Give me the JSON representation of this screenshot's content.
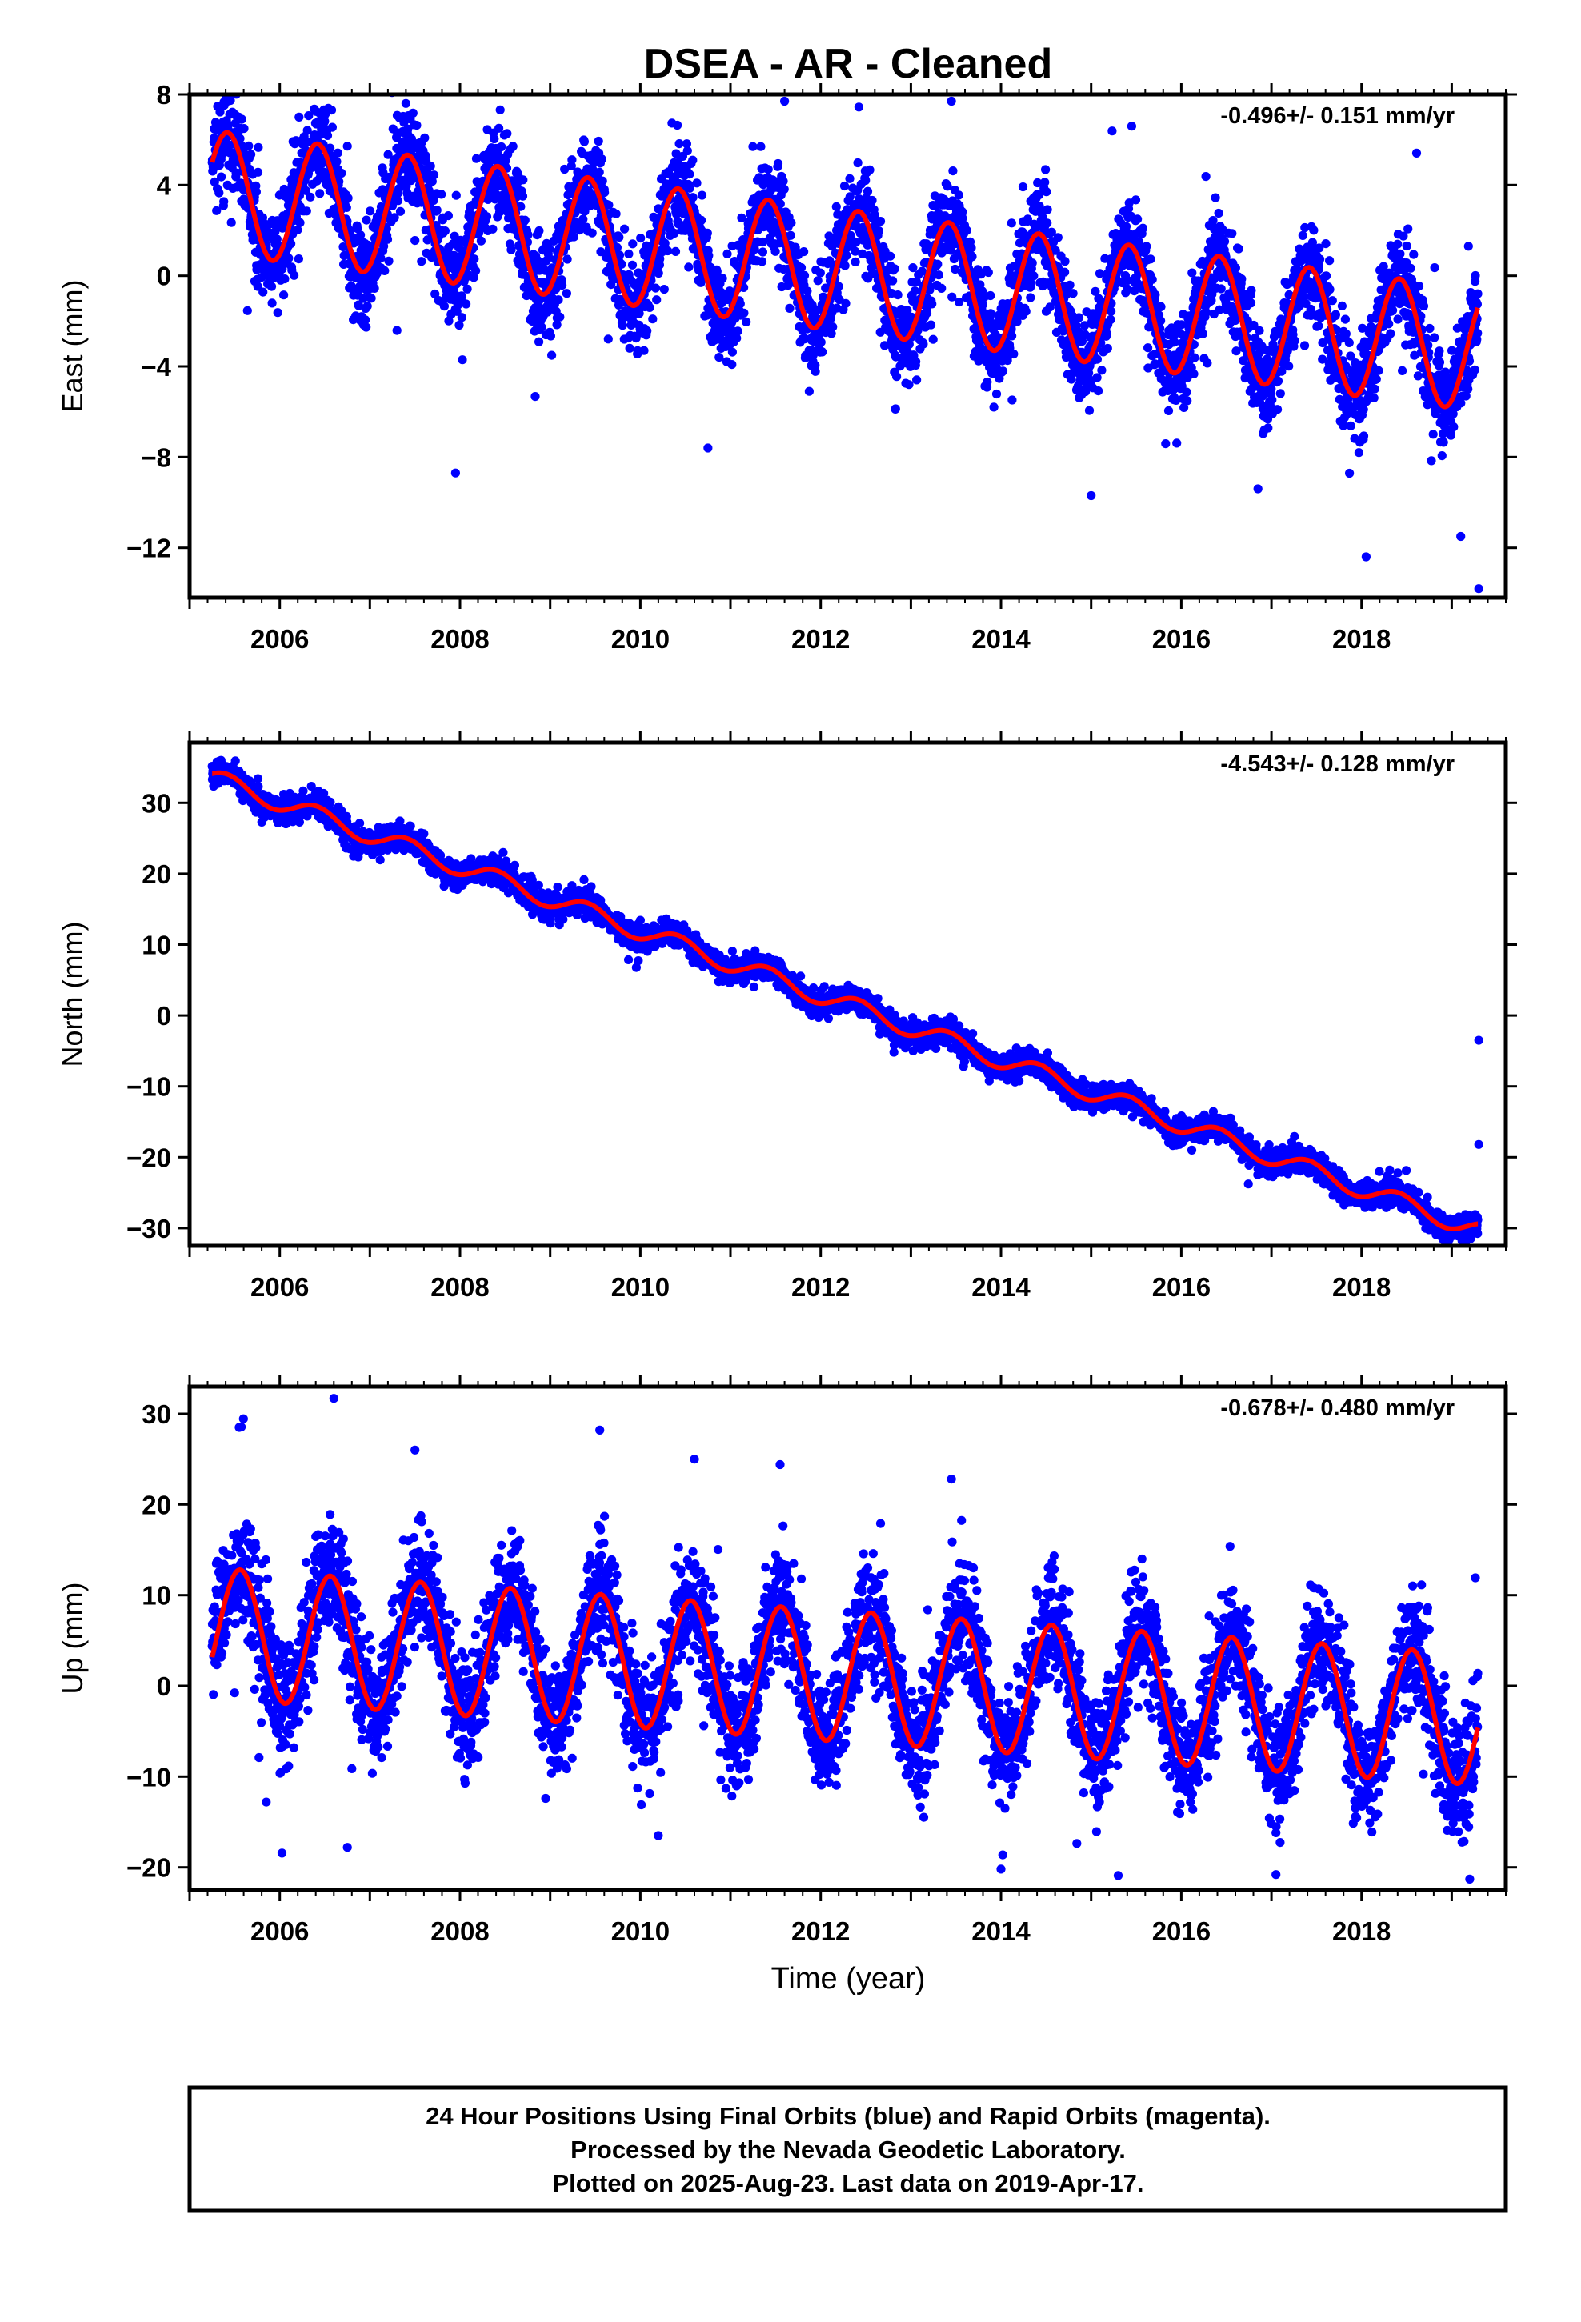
{
  "figure": {
    "title": "DSEA  - AR - Cleaned",
    "x_axis_label": "Time (year)"
  },
  "colors": {
    "observations": "#0000ff",
    "model_fit": "#ff0000",
    "frame": "#000000"
  },
  "footer": {
    "line1": "24 Hour Positions Using Final Orbits (blue) and Rapid Orbits (magenta).",
    "line2": "Processed by the Nevada Geodetic Laboratory.",
    "line3": "Plotted on 2025-Aug-23. Last data on 2019-Apr-17."
  },
  "chart_data": [
    {
      "type": "scatter",
      "component": "east",
      "ylabel": "East (mm)",
      "rate_label": "-0.496+/- 0.151 mm/yr",
      "xlim": [
        2005.0,
        2019.6
      ],
      "ylim": [
        -14.2,
        8.0
      ],
      "x_ticks": [
        2006,
        2008,
        2010,
        2012,
        2014,
        2016,
        2018
      ],
      "y_ticks": [
        8,
        4,
        0,
        -4,
        -8,
        -12
      ],
      "y_tick_labels": [
        "8",
        "4",
        "0",
        "−4",
        "−8",
        "−12"
      ],
      "data_start": 2005.25,
      "data_end": 2019.29,
      "model": {
        "offset_mm": 3.7,
        "trend_mm_per_yr": -0.496,
        "annual_amplitude_mm": 2.7,
        "annual_peak_year_fraction": 0.42
      },
      "scatter_noise_mm": 1.1,
      "outliers": [
        {
          "x": 2007.4,
          "y": 7.6
        },
        {
          "x": 2007.95,
          "y": -8.7
        },
        {
          "x": 2010.75,
          "y": -7.6
        },
        {
          "x": 2015.0,
          "y": -9.7
        },
        {
          "x": 2016.85,
          "y": -9.4
        },
        {
          "x": 2018.05,
          "y": -12.4
        },
        {
          "x": 2019.1,
          "y": -11.5
        },
        {
          "x": 2019.3,
          "y": -13.8
        },
        {
          "x": 2011.6,
          "y": 7.7
        },
        {
          "x": 2013.45,
          "y": 7.7
        },
        {
          "x": 2015.45,
          "y": 6.6
        }
      ],
      "series": [
        {
          "name": "Final Orbits (blue)",
          "role": "observations",
          "color": "#0000ff"
        },
        {
          "role": "model_fit",
          "color": "#ff0000"
        }
      ]
    },
    {
      "type": "scatter",
      "component": "north",
      "ylabel": "North (mm)",
      "rate_label": "-4.543+/- 0.128 mm/yr",
      "xlim": [
        2005.0,
        2019.6
      ],
      "ylim": [
        -32.5,
        38.5
      ],
      "x_ticks": [
        2006,
        2008,
        2010,
        2012,
        2014,
        2016,
        2018
      ],
      "y_ticks": [
        30,
        20,
        10,
        0,
        -10,
        -20,
        -30
      ],
      "y_tick_labels": [
        "30",
        "20",
        "10",
        "0",
        "−10",
        "−20",
        "−30"
      ],
      "data_start": 2005.25,
      "data_end": 2019.29,
      "model": {
        "offset_mm": 33.5,
        "trend_mm_per_yr": -4.543,
        "annual_amplitude_mm": 1.3,
        "annual_peak_year_fraction": 0.42
      },
      "scatter_noise_mm": 0.9,
      "outliers": [
        {
          "x": 2019.3,
          "y": -3.5
        },
        {
          "x": 2019.3,
          "y": -18.2
        }
      ],
      "series": [
        {
          "name": "Final Orbits (blue)",
          "role": "observations",
          "color": "#0000ff"
        },
        {
          "role": "model_fit",
          "color": "#ff0000"
        }
      ]
    },
    {
      "type": "scatter",
      "component": "up",
      "ylabel": "Up (mm)",
      "rate_label": "-0.678+/- 0.480 mm/yr",
      "xlim": [
        2005.0,
        2019.6
      ],
      "ylim": [
        -22.5,
        33.0
      ],
      "x_ticks": [
        2006,
        2008,
        2010,
        2012,
        2014,
        2016,
        2018
      ],
      "y_ticks": [
        30,
        20,
        10,
        0,
        -10,
        -20
      ],
      "y_tick_labels": [
        "30",
        "20",
        "10",
        "0",
        "−10",
        "−20"
      ],
      "data_start": 2005.25,
      "data_end": 2019.29,
      "model": {
        "offset_mm": 5.8,
        "trend_mm_per_yr": -0.678,
        "annual_amplitude_mm": 7.2,
        "annual_peak_year_fraction": 0.56
      },
      "scatter_noise_mm": 3.2,
      "outliers": [
        {
          "x": 2005.55,
          "y": 28.5
        },
        {
          "x": 2006.6,
          "y": 31.7
        },
        {
          "x": 2007.5,
          "y": 26.0
        },
        {
          "x": 2009.55,
          "y": 28.2
        },
        {
          "x": 2010.6,
          "y": 25.0
        },
        {
          "x": 2011.55,
          "y": 24.4
        },
        {
          "x": 2013.45,
          "y": 22.8
        },
        {
          "x": 2005.85,
          "y": -12.8
        },
        {
          "x": 2006.75,
          "y": -17.8
        },
        {
          "x": 2010.2,
          "y": -16.5
        },
        {
          "x": 2014.0,
          "y": -20.2
        },
        {
          "x": 2015.3,
          "y": -20.9
        },
        {
          "x": 2017.05,
          "y": -20.8
        },
        {
          "x": 2019.2,
          "y": -21.3
        },
        {
          "x": 2008.95,
          "y": -12.4
        }
      ],
      "series": [
        {
          "name": "Final Orbits (blue)",
          "role": "observations",
          "color": "#0000ff"
        },
        {
          "role": "model_fit",
          "color": "#ff0000"
        }
      ]
    }
  ]
}
